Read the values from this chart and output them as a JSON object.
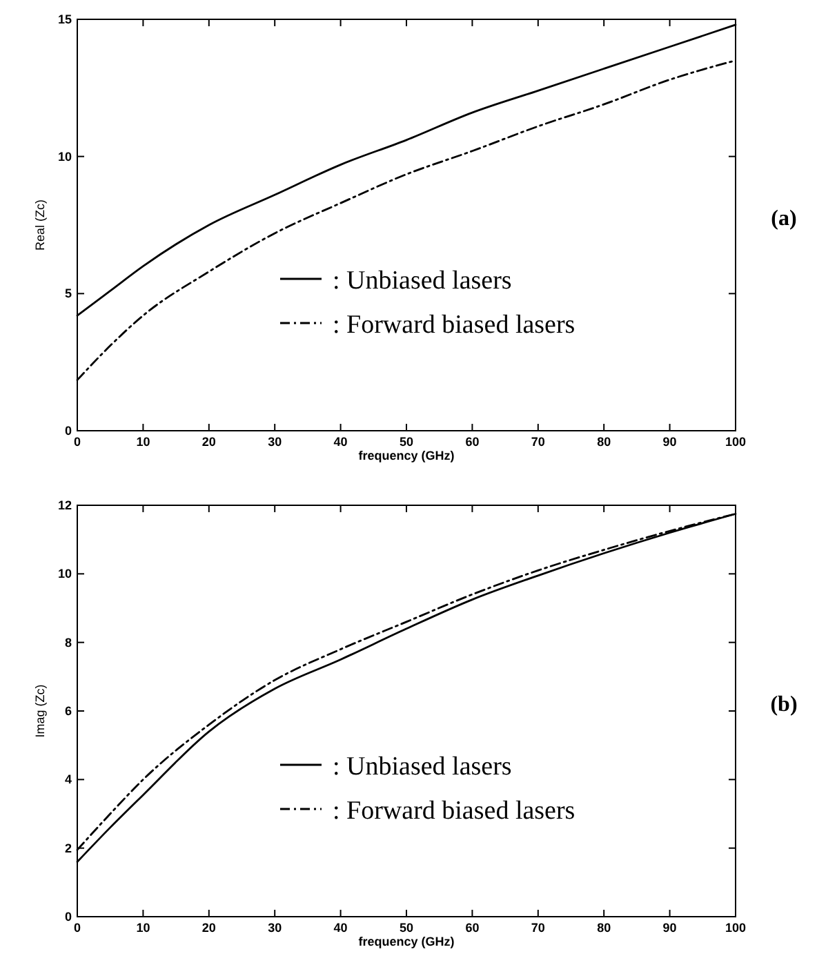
{
  "chart_data": [
    {
      "type": "line",
      "xlabel": "frequency (GHz)",
      "ylabel": "Real (Zc)",
      "x": [
        0,
        5,
        10,
        20,
        30,
        40,
        50,
        60,
        70,
        80,
        90,
        100
      ],
      "xlim": [
        0,
        100
      ],
      "xticks": [
        0,
        10,
        20,
        30,
        40,
        50,
        60,
        70,
        80,
        90,
        100
      ],
      "ylim": [
        0,
        15
      ],
      "yticks": [
        0,
        5,
        10,
        15
      ],
      "legend": "bottom",
      "annotations": [
        "(a)"
      ],
      "series": [
        {
          "name": ": Unbiased lasers",
          "color": "#000000",
          "line_style": "solid",
          "values": [
            4.2,
            5.1,
            6.0,
            7.5,
            8.6,
            9.7,
            10.6,
            11.6,
            12.4,
            13.2,
            14.0,
            14.8
          ]
        },
        {
          "name": ": Forward biased lasers",
          "color": "#000000",
          "line_style": "dashdot",
          "values": [
            1.85,
            3.1,
            4.2,
            5.8,
            7.2,
            8.3,
            9.35,
            10.2,
            11.1,
            11.9,
            12.8,
            13.5
          ]
        }
      ]
    },
    {
      "type": "line",
      "xlabel": "frequency (GHz)",
      "ylabel": "Imag (Zc)",
      "x": [
        0,
        5,
        10,
        20,
        30,
        40,
        50,
        60,
        70,
        80,
        90,
        100
      ],
      "xlim": [
        0,
        100
      ],
      "xticks": [
        0,
        10,
        20,
        30,
        40,
        50,
        60,
        70,
        80,
        90,
        100
      ],
      "ylim": [
        0,
        12
      ],
      "yticks": [
        0,
        2,
        4,
        6,
        8,
        10,
        12
      ],
      "legend": "bottom",
      "annotations": [
        "(b)"
      ],
      "series": [
        {
          "name": ": Unbiased lasers",
          "color": "#000000",
          "line_style": "solid",
          "values": [
            1.6,
            2.6,
            3.55,
            5.4,
            6.65,
            7.5,
            8.4,
            9.25,
            9.95,
            10.6,
            11.2,
            11.75
          ]
        },
        {
          "name": ": Forward biased lasers",
          "color": "#000000",
          "line_style": "dashdot",
          "values": [
            1.95,
            3.0,
            4.0,
            5.6,
            6.9,
            7.8,
            8.6,
            9.4,
            10.1,
            10.7,
            11.25,
            11.75
          ]
        }
      ]
    }
  ]
}
